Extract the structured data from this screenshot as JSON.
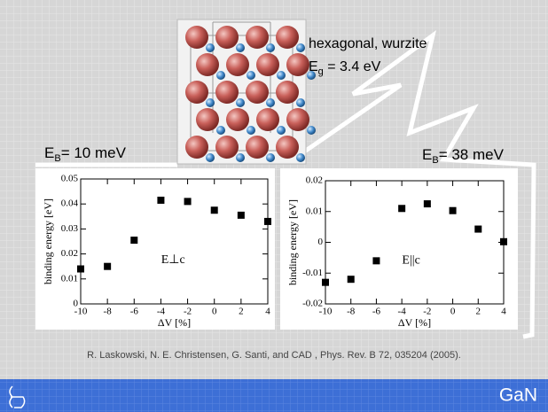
{
  "slide": {
    "crystal_label": "hexagonal, wurzite",
    "gap": {
      "symbol": "E",
      "sub": "g",
      "rest": " = 3.4 eV"
    },
    "binding_left": {
      "symbol": "E",
      "sub": "B",
      "rest": "= 10 meV"
    },
    "binding_right": {
      "symbol": "E",
      "sub": "B",
      "rest": "= 38 meV"
    },
    "citation": "R. Laskowski, N. E. Christensen, G. Santi, and CAD , Phys. Rev. B 72, 035204 (2005).",
    "footer": "GaN"
  },
  "chart_data": [
    {
      "type": "scatter",
      "x": [
        -10,
        -8,
        -6,
        -4,
        -2,
        0,
        2,
        4
      ],
      "values": [
        0.014,
        0.015,
        0.0255,
        0.0415,
        0.041,
        0.0375,
        0.0355,
        0.033
      ],
      "color": "#000000",
      "xlim": [
        -10,
        4
      ],
      "xticks": [
        -10,
        -8,
        -6,
        -4,
        -2,
        0,
        2,
        4
      ],
      "ylim": [
        0,
        0.05
      ],
      "yticks": [
        0,
        0.01,
        0.02,
        0.03,
        0.04,
        0.05
      ],
      "x_label": "ΔV [%]",
      "y_label": "binding energy [eV]",
      "annotation": "E⊥c"
    },
    {
      "type": "scatter",
      "x": [
        -10,
        -8,
        -6,
        -4,
        -2,
        0,
        2,
        4
      ],
      "values": [
        -0.013,
        -0.012,
        -0.006,
        0.011,
        0.0125,
        0.0103,
        0.0043,
        0.0002
      ],
      "color": "#000000",
      "xlim": [
        -10,
        4
      ],
      "xticks": [
        -10,
        -8,
        -6,
        -4,
        -2,
        0,
        2,
        4
      ],
      "ylim": [
        -0.02,
        0.02
      ],
      "yticks": [
        -0.02,
        -0.01,
        0,
        0.01,
        0.02
      ],
      "x_label": "ΔV [%]",
      "y_label": "binding energy [eV]",
      "annotation": "E||c"
    }
  ]
}
